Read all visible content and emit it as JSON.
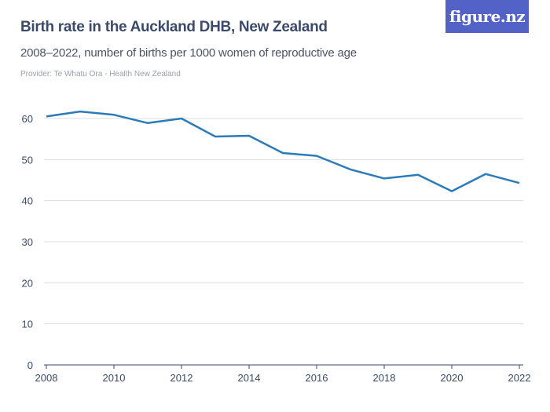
{
  "header": {
    "title": "Birth rate in the Auckland DHB, New Zealand",
    "subtitle": "2008–2022, number of births per 1000 women of reproductive age",
    "provider": "Provider: Te Whatu Ora - Health New Zealand",
    "logo": "figure.nz"
  },
  "colors": {
    "line": "#2b7bba",
    "grid": "#dddddd",
    "logo_bg": "#5262c6"
  },
  "chart_data": {
    "type": "line",
    "title": "Birth rate in the Auckland DHB, New Zealand",
    "subtitle": "2008–2022, number of births per 1000 women of reproductive age",
    "xlabel": "",
    "ylabel": "",
    "x": [
      2008,
      2009,
      2010,
      2011,
      2012,
      2013,
      2014,
      2015,
      2016,
      2017,
      2018,
      2019,
      2020,
      2021,
      2022
    ],
    "series": [
      {
        "values": [
          60.5,
          61.7,
          60.9,
          58.9,
          60.0,
          55.6,
          55.8,
          51.6,
          50.9,
          47.6,
          45.4,
          46.3,
          42.3,
          46.5,
          44.3
        ]
      }
    ],
    "ylim": [
      0,
      60
    ],
    "xlim": [
      2008,
      2022
    ],
    "yticks": [
      0,
      10,
      20,
      30,
      40,
      50,
      60
    ],
    "xticks": [
      2008,
      2010,
      2012,
      2014,
      2016,
      2018,
      2020,
      2022
    ],
    "grid": true
  }
}
